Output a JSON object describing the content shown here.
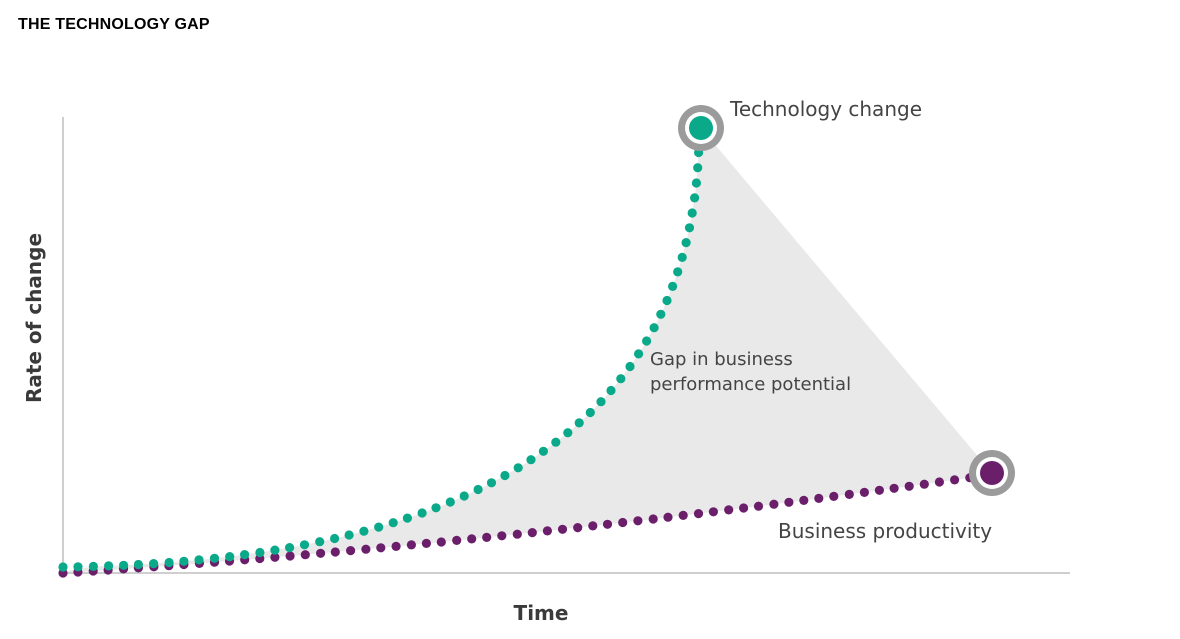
{
  "title": "THE TECHNOLOGY GAP",
  "axes": {
    "x_label": "Time",
    "y_label": "Rate of change"
  },
  "series": {
    "technology": {
      "label": "Technology change",
      "color": "#0aa98a"
    },
    "business": {
      "label": "Business productivity",
      "color": "#6b1f6b"
    }
  },
  "gap": {
    "line1": "Gap in business",
    "line2": "performance potential",
    "fill": "#e9e9e9"
  },
  "colors": {
    "axis": "#cfcfcf",
    "endpoint_ring": "#9b9b9b"
  }
}
